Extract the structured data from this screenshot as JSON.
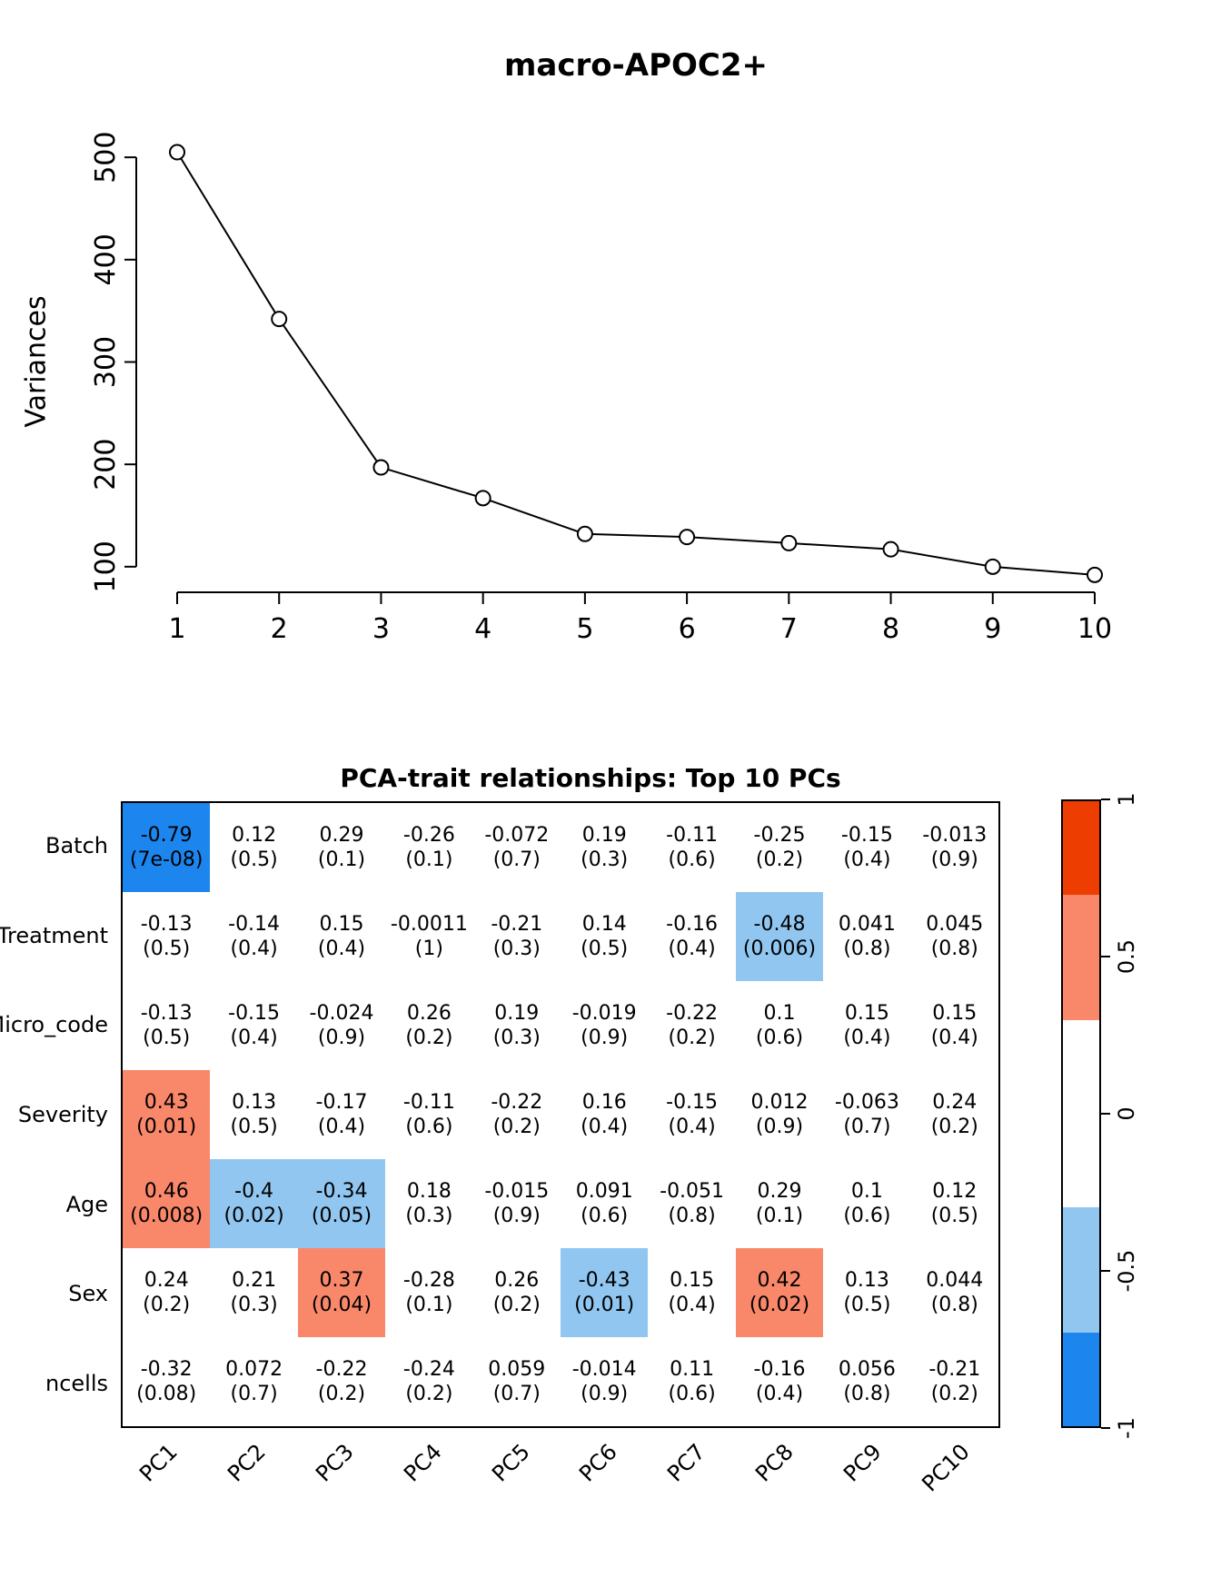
{
  "chart_data": [
    {
      "type": "line",
      "title": "macro-APOC2+",
      "xlabel": "",
      "ylabel": "Variances",
      "x": [
        1,
        2,
        3,
        4,
        5,
        6,
        7,
        8,
        9,
        10
      ],
      "series": [
        {
          "name": "Variances",
          "values": [
            505,
            342,
            197,
            167,
            132,
            129,
            123,
            117,
            100,
            92
          ]
        }
      ],
      "xticks": [
        1,
        2,
        3,
        4,
        5,
        6,
        7,
        8,
        9,
        10
      ],
      "yticks": [
        100,
        200,
        300,
        400,
        500
      ],
      "ylim": [
        75,
        525
      ],
      "marker": "open-circle",
      "grid": false,
      "legend": "none"
    },
    {
      "type": "heatmap",
      "title": "PCA-trait relationships: Top 10 PCs",
      "rows": [
        "Batch",
        "Treatment",
        "Micro_code",
        "Severity",
        "Age",
        "Sex",
        "ncells"
      ],
      "cols": [
        "PC1",
        "PC2",
        "PC3",
        "PC4",
        "PC5",
        "PC6",
        "PC7",
        "PC8",
        "PC9",
        "PC10"
      ],
      "cell_format": "correlation over (p-value)",
      "color_rule": "cell colored only when p <= significance_threshold; hue by sign, depth by |r| >= strong_cutoff",
      "cells": [
        [
          [
            "-0.79",
            "7e-08"
          ],
          [
            "0.12",
            "0.5"
          ],
          [
            "0.29",
            "0.1"
          ],
          [
            "-0.26",
            "0.1"
          ],
          [
            "-0.072",
            "0.7"
          ],
          [
            "0.19",
            "0.3"
          ],
          [
            "-0.11",
            "0.6"
          ],
          [
            "-0.25",
            "0.2"
          ],
          [
            "-0.15",
            "0.4"
          ],
          [
            "-0.013",
            "0.9"
          ]
        ],
        [
          [
            "-0.13",
            "0.5"
          ],
          [
            "-0.14",
            "0.4"
          ],
          [
            "0.15",
            "0.4"
          ],
          [
            "-0.0011",
            "1"
          ],
          [
            "-0.21",
            "0.3"
          ],
          [
            "0.14",
            "0.5"
          ],
          [
            "-0.16",
            "0.4"
          ],
          [
            "-0.48",
            "0.006"
          ],
          [
            "0.041",
            "0.8"
          ],
          [
            "0.045",
            "0.8"
          ]
        ],
        [
          [
            "-0.13",
            "0.5"
          ],
          [
            "-0.15",
            "0.4"
          ],
          [
            "-0.024",
            "0.9"
          ],
          [
            "0.26",
            "0.2"
          ],
          [
            "0.19",
            "0.3"
          ],
          [
            "-0.019",
            "0.9"
          ],
          [
            "-0.22",
            "0.2"
          ],
          [
            "0.1",
            "0.6"
          ],
          [
            "0.15",
            "0.4"
          ],
          [
            "0.15",
            "0.4"
          ]
        ],
        [
          [
            "0.43",
            "0.01"
          ],
          [
            "0.13",
            "0.5"
          ],
          [
            "-0.17",
            "0.4"
          ],
          [
            "-0.11",
            "0.6"
          ],
          [
            "-0.22",
            "0.2"
          ],
          [
            "0.16",
            "0.4"
          ],
          [
            "-0.15",
            "0.4"
          ],
          [
            "0.012",
            "0.9"
          ],
          [
            "-0.063",
            "0.7"
          ],
          [
            "0.24",
            "0.2"
          ]
        ],
        [
          [
            "0.46",
            "0.008"
          ],
          [
            "-0.4",
            "0.02"
          ],
          [
            "-0.34",
            "0.05"
          ],
          [
            "0.18",
            "0.3"
          ],
          [
            "-0.015",
            "0.9"
          ],
          [
            "0.091",
            "0.6"
          ],
          [
            "-0.051",
            "0.8"
          ],
          [
            "0.29",
            "0.1"
          ],
          [
            "0.1",
            "0.6"
          ],
          [
            "0.12",
            "0.5"
          ]
        ],
        [
          [
            "0.24",
            "0.2"
          ],
          [
            "0.21",
            "0.3"
          ],
          [
            "0.37",
            "0.04"
          ],
          [
            "-0.28",
            "0.1"
          ],
          [
            "0.26",
            "0.2"
          ],
          [
            "-0.43",
            "0.01"
          ],
          [
            "0.15",
            "0.4"
          ],
          [
            "0.42",
            "0.02"
          ],
          [
            "0.13",
            "0.5"
          ],
          [
            "0.044",
            "0.8"
          ]
        ],
        [
          [
            "-0.32",
            "0.08"
          ],
          [
            "0.072",
            "0.7"
          ],
          [
            "-0.22",
            "0.2"
          ],
          [
            "-0.24",
            "0.2"
          ],
          [
            "0.059",
            "0.7"
          ],
          [
            "-0.014",
            "0.9"
          ],
          [
            "0.11",
            "0.6"
          ],
          [
            "-0.16",
            "0.4"
          ],
          [
            "0.056",
            "0.8"
          ],
          [
            "-0.21",
            "0.2"
          ]
        ]
      ],
      "colors": {
        "strong_positive": "#EE3D00",
        "weak_positive": "#F9876A",
        "not_significant": "#FFFFFF",
        "weak_negative": "#90C6F0",
        "strong_negative": "#1C86EE",
        "significance_threshold": 0.05,
        "strong_cutoff": 0.7
      },
      "colorbar_ticks": [
        "1",
        "0.5",
        "0",
        "-0.5",
        "-1"
      ],
      "colorbar_breaks": [
        1,
        0.7,
        0.3,
        -0.3,
        -0.7,
        -1
      ],
      "colorbar_range": [
        -1,
        1
      ],
      "legend_position": "right"
    }
  ]
}
